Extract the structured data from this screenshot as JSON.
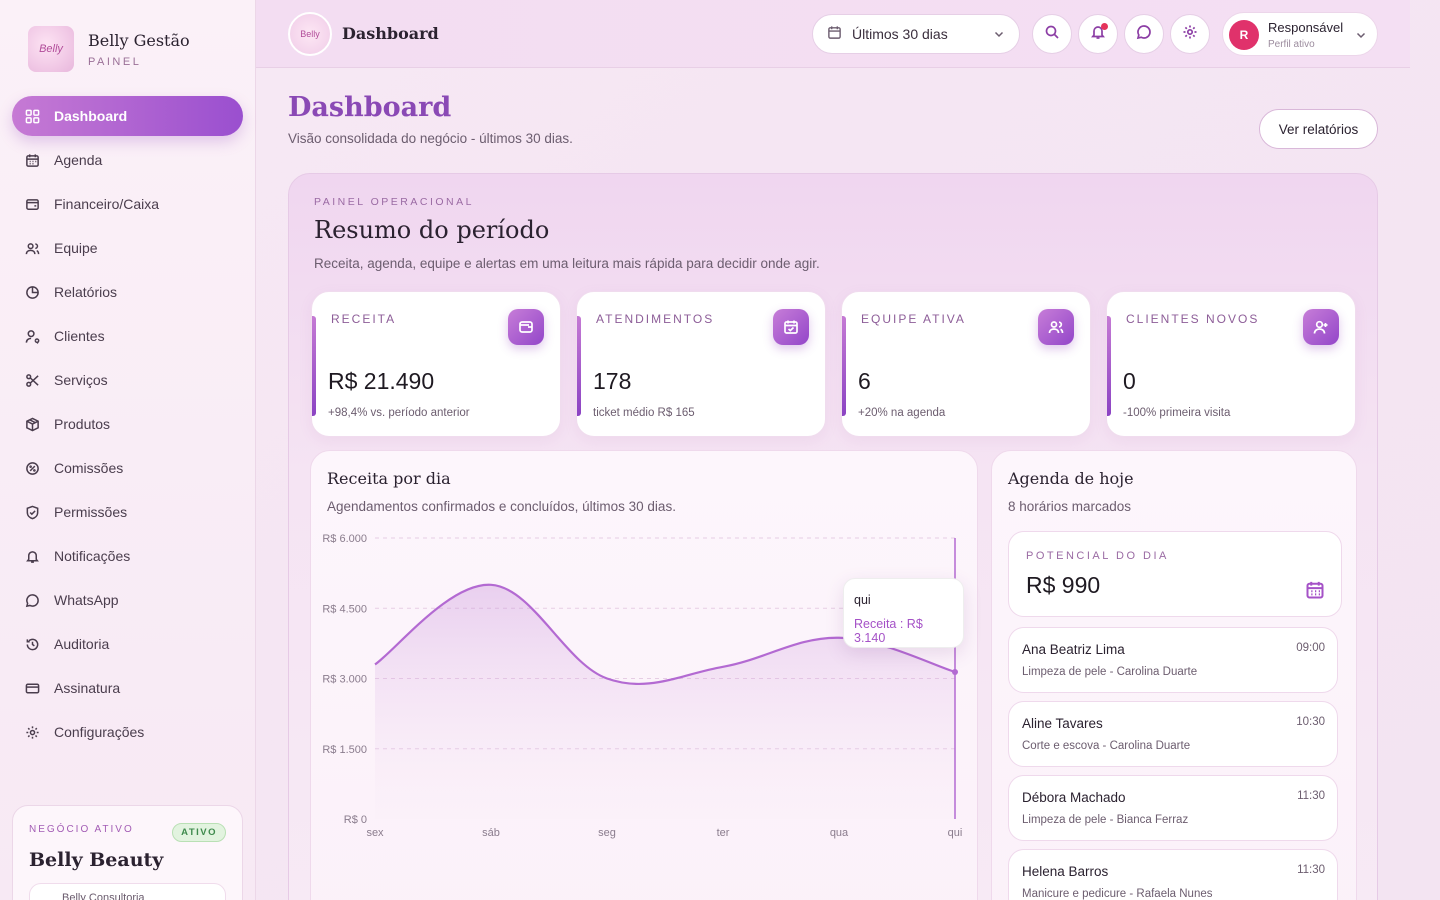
{
  "brand": {
    "name": "Belly Gestão",
    "subtitle": "PAINEL",
    "logo_text": "Belly"
  },
  "sidebar": {
    "items": [
      {
        "label": "Dashboard",
        "icon": "grid-icon",
        "active": true
      },
      {
        "label": "Agenda",
        "icon": "calendar-icon"
      },
      {
        "label": "Financeiro/Caixa",
        "icon": "wallet-icon"
      },
      {
        "label": "Equipe",
        "icon": "users-icon"
      },
      {
        "label": "Relatórios",
        "icon": "pie-chart-icon"
      },
      {
        "label": "Clientes",
        "icon": "user-search-icon"
      },
      {
        "label": "Serviços",
        "icon": "scissors-icon"
      },
      {
        "label": "Produtos",
        "icon": "package-icon"
      },
      {
        "label": "Comissões",
        "icon": "percent-icon"
      },
      {
        "label": "Permissões",
        "icon": "shield-icon"
      },
      {
        "label": "Notificações",
        "icon": "bell-icon"
      },
      {
        "label": "WhatsApp",
        "icon": "chat-icon"
      },
      {
        "label": "Auditoria",
        "icon": "history-icon"
      },
      {
        "label": "Assinatura",
        "icon": "credit-card-icon"
      },
      {
        "label": "Configurações",
        "icon": "gear-icon"
      }
    ],
    "business": {
      "label": "NEGÓCIO ATIVO",
      "badge": "ATIVO",
      "name": "Belly Beauty",
      "sub": "Belly Consultoria"
    }
  },
  "header": {
    "title": "Dashboard",
    "period": "Últimos 30 dias",
    "user_name": "Responsável",
    "user_role": "Perfil ativo",
    "user_initial": "R"
  },
  "page": {
    "title": "Dashboard",
    "subtitle": "Visão consolidada do negócio - últimos 30 dias.",
    "reports_button": "Ver relatórios"
  },
  "panel": {
    "kicker": "PAINEL OPERACIONAL",
    "title": "Resumo do período",
    "subtitle": "Receita, agenda, equipe e alertas em uma leitura mais rápida para decidir onde agir."
  },
  "kpis": [
    {
      "label": "RECEITA",
      "value": "R$ 21.490",
      "note": "+98,4% vs. período anterior",
      "icon": "wallet-icon"
    },
    {
      "label": "ATENDIMENTOS",
      "value": "178",
      "note": "ticket médio R$ 165",
      "icon": "calendar-check-icon"
    },
    {
      "label": "EQUIPE ATIVA",
      "value": "6",
      "note": "+20% na agenda",
      "icon": "users-icon"
    },
    {
      "label": "CLIENTES NOVOS",
      "value": "0",
      "note": "-100% primeira visita",
      "icon": "user-plus-icon"
    }
  ],
  "revenue_chart": {
    "title": "Receita por dia",
    "subtitle": "Agendamentos confirmados e concluídos, últimos 30 dias.",
    "tooltip_label": "qui",
    "tooltip_value": "Receita : R$ 3.140"
  },
  "chart_data": {
    "type": "area",
    "title": "Receita por dia",
    "x": [
      "sex",
      "sáb",
      "seg",
      "ter",
      "qua",
      "qui"
    ],
    "series": [
      {
        "name": "Receita",
        "values": [
          3300,
          5000,
          3000,
          3250,
          3870,
          3140
        ]
      }
    ],
    "y_ticks": [
      "R$ 0",
      "R$ 1.500",
      "R$ 3.000",
      "R$ 4.500",
      "R$ 6.000"
    ],
    "ylim": [
      0,
      6000
    ],
    "grid": true,
    "color": "#b36ad2"
  },
  "agenda": {
    "title": "Agenda de hoje",
    "subtitle": "8 horários marcados",
    "potential_label": "POTENCIAL DO DIA",
    "potential_value": "R$ 990",
    "appointments": [
      {
        "name": "Ana Beatriz Lima",
        "desc": "Limpeza de pele - Carolina Duarte",
        "time": "09:00"
      },
      {
        "name": "Aline Tavares",
        "desc": "Corte e escova - Carolina Duarte",
        "time": "10:30"
      },
      {
        "name": "Débora Machado",
        "desc": "Limpeza de pele - Bianca Ferraz",
        "time": "11:30"
      },
      {
        "name": "Helena Barros",
        "desc": "Manicure e pedicure - Rafaela Nunes",
        "time": "11:30"
      }
    ]
  }
}
